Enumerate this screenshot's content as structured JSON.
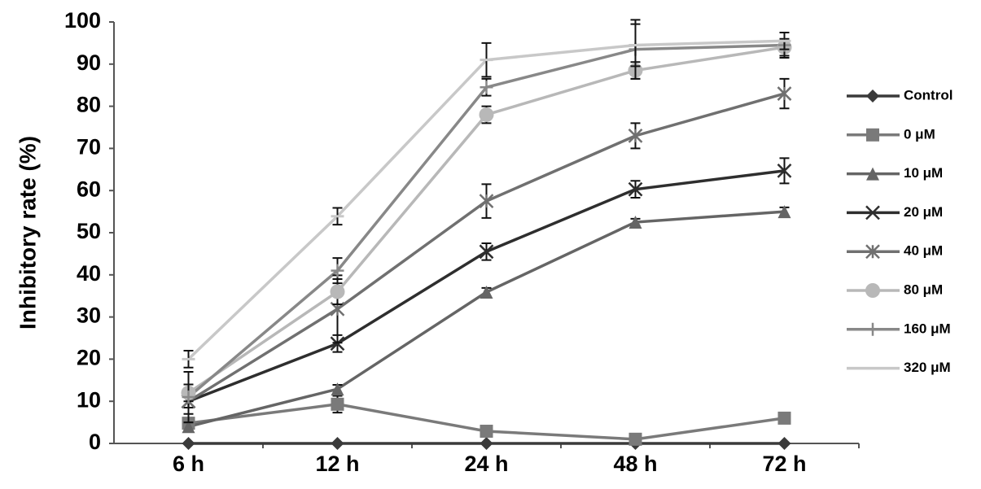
{
  "chart_data": {
    "type": "line",
    "y_label": "Inhibitory rate (%)",
    "categories": [
      "6 h",
      "12 h",
      "24 h",
      "48 h",
      "72 h"
    ],
    "ylim": [
      0,
      100
    ],
    "yticks": [
      0,
      10,
      20,
      30,
      40,
      50,
      60,
      70,
      80,
      90,
      100
    ],
    "legend": "right",
    "series": [
      {
        "name": "Control",
        "color": "#3a3a3a",
        "marker": "diamond",
        "values": [
          0,
          0,
          0,
          0,
          0
        ]
      },
      {
        "name": "0 μM",
        "color": "#7a7a7a",
        "marker": "square",
        "values": [
          4.8,
          9.3,
          2.9,
          1,
          6
        ],
        "errors": [
          1,
          2,
          1,
          0.5,
          1
        ]
      },
      {
        "name": "10 μM",
        "color": "#656565",
        "marker": "triangle",
        "values": [
          4,
          12.9,
          35.9,
          52.5,
          55
        ],
        "errors": [
          1,
          1,
          1,
          0.8,
          1
        ]
      },
      {
        "name": "20 μM",
        "color": "#2e2e2e",
        "marker": "x",
        "values": [
          10,
          23.7,
          45.5,
          60.3,
          64.7
        ],
        "errors": [
          1.5,
          2,
          2,
          2,
          3
        ]
      },
      {
        "name": "40 μM",
        "color": "#707070",
        "marker": "star",
        "values": [
          10,
          31.9,
          57.5,
          73,
          83
        ],
        "errors": [
          3,
          8,
          4,
          3,
          3.5
        ]
      },
      {
        "name": "80 μM",
        "color": "#b8b8b8",
        "marker": "circle",
        "values": [
          12,
          36,
          78,
          88.5,
          94
        ],
        "errors": [
          2,
          3,
          2,
          2,
          2
        ]
      },
      {
        "name": "160 μM",
        "color": "#888888",
        "marker": "plus",
        "values": [
          11,
          41,
          84.5,
          93.5,
          94.5
        ],
        "errors": [
          6,
          3,
          2,
          7,
          3
        ]
      },
      {
        "name": "320 μM",
        "color": "#c8c8c8",
        "marker": "dash",
        "values": [
          20,
          53.9,
          91,
          94.5,
          95.5
        ],
        "errors": [
          2,
          2,
          4,
          5,
          2
        ]
      }
    ]
  }
}
